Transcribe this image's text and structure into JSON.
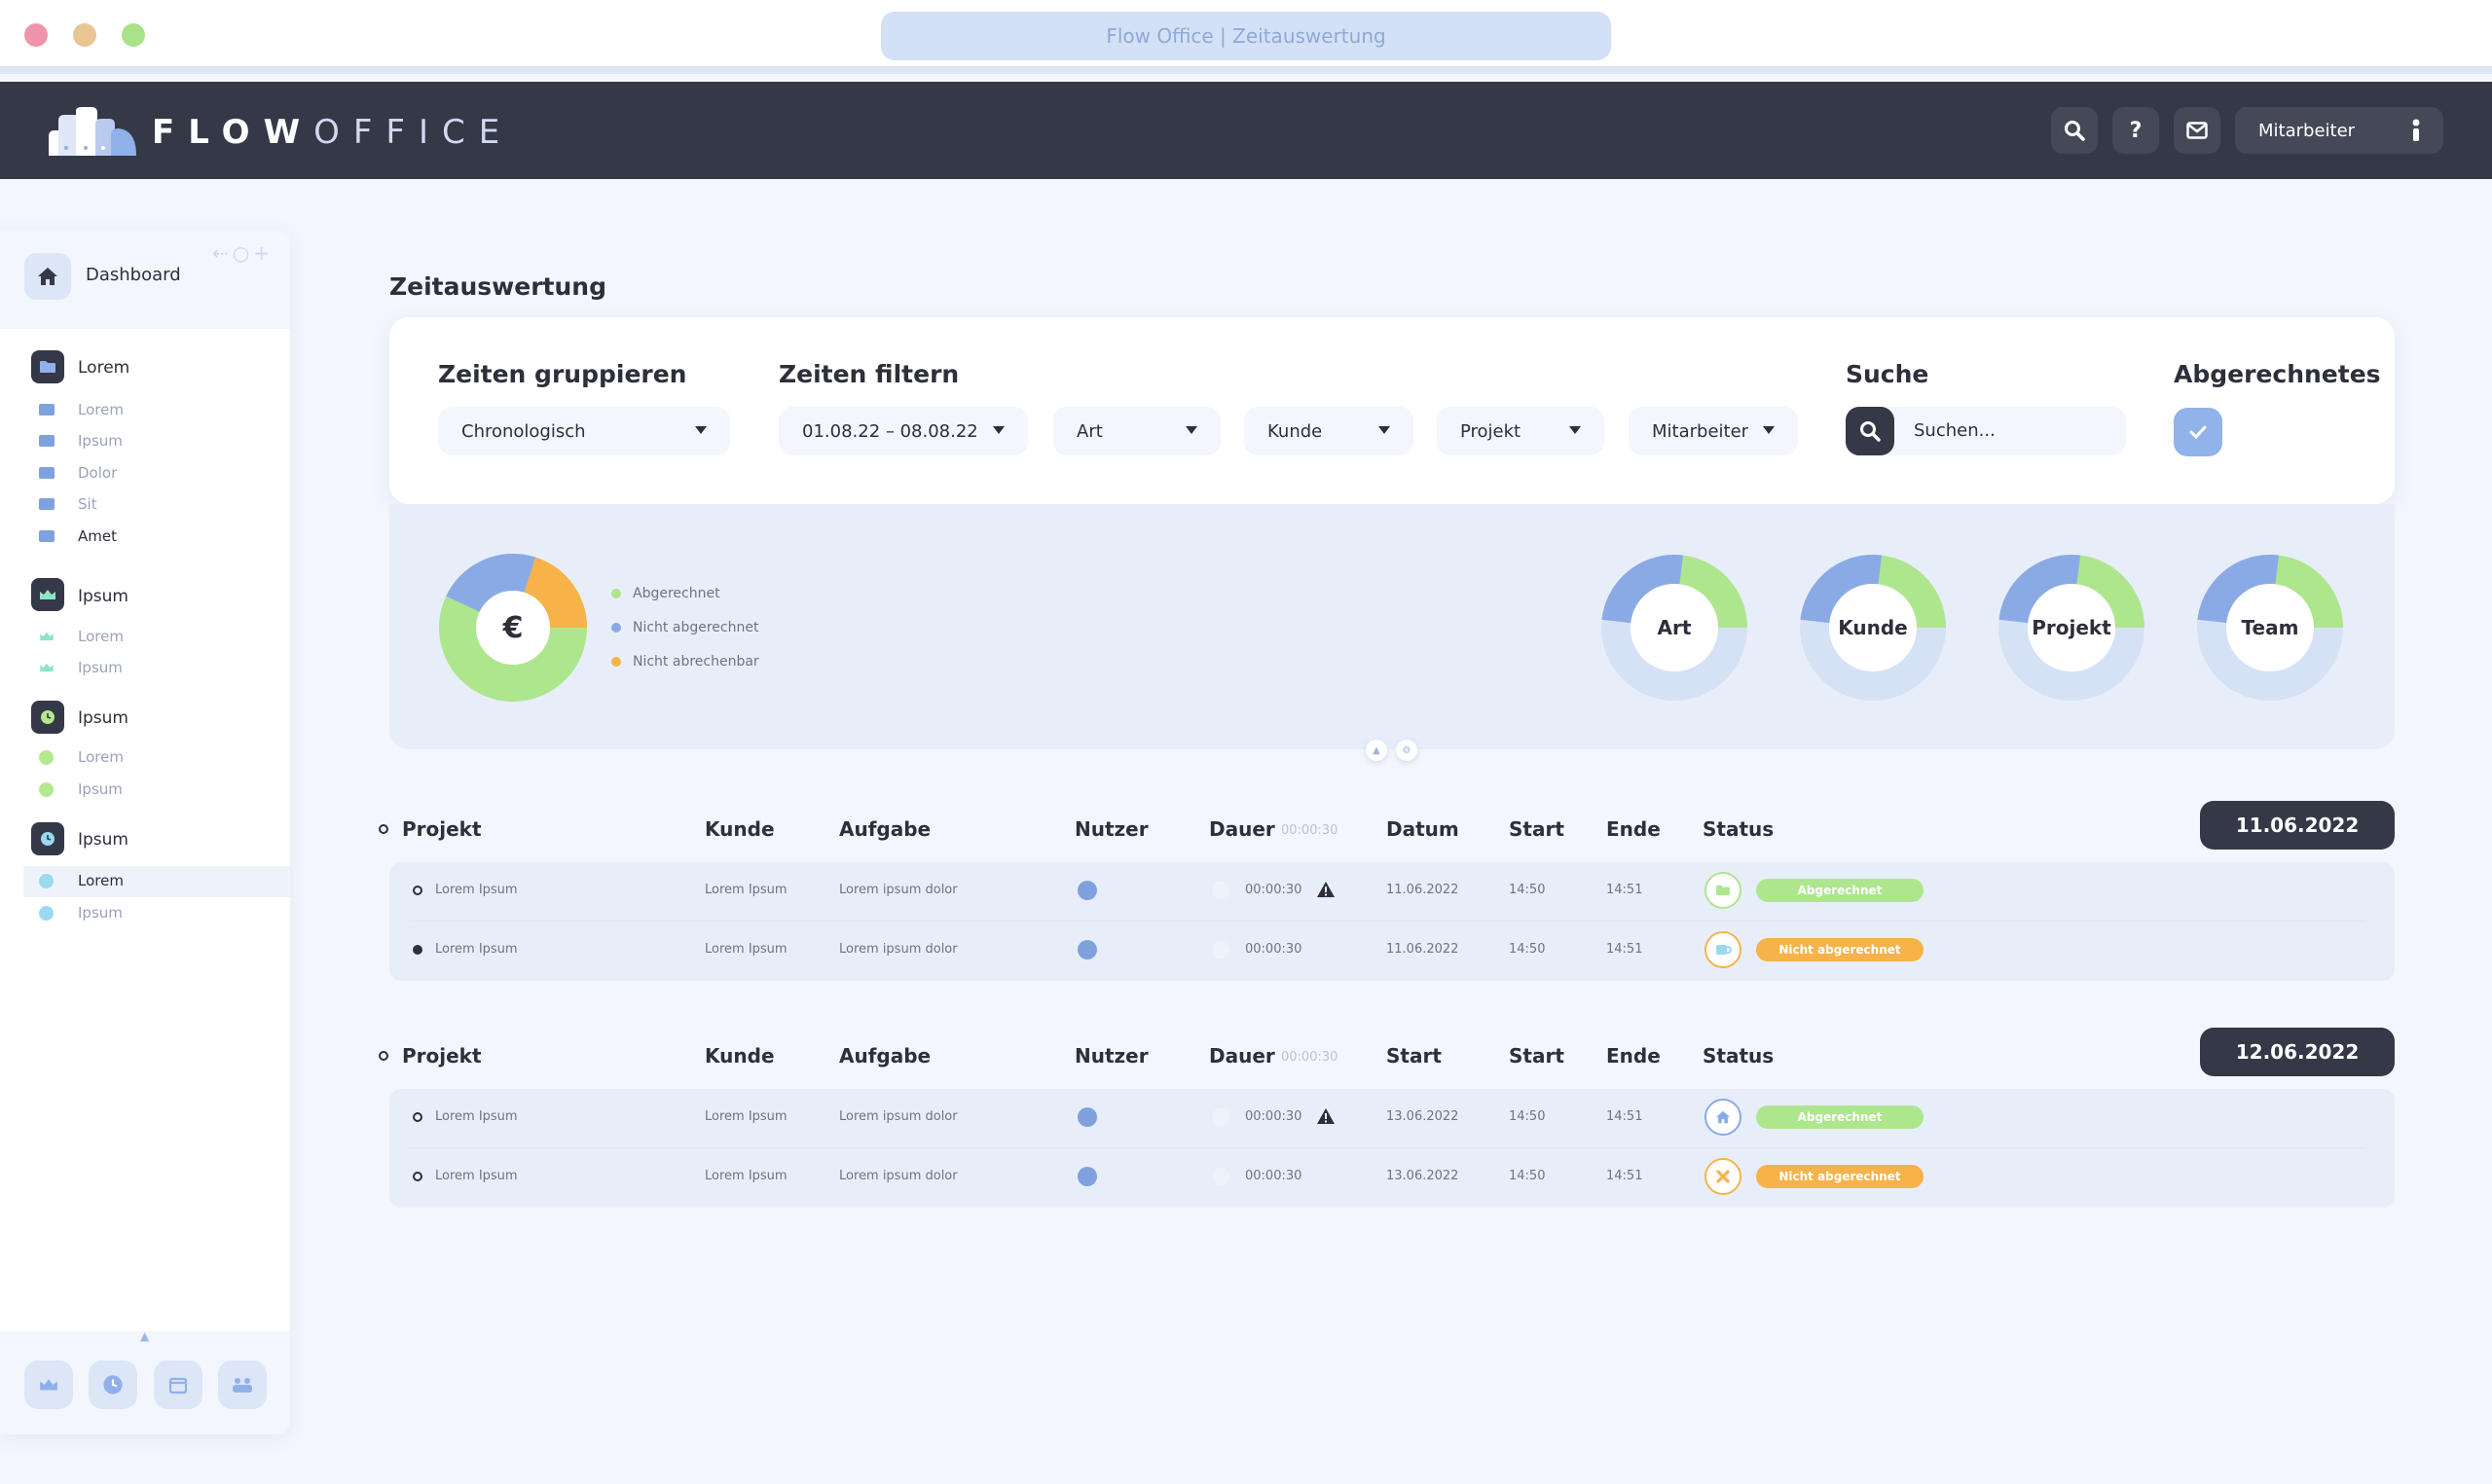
{
  "browser": {
    "url_title": "Flow Office | Zeitauswertung"
  },
  "header": {
    "logo_bold": "FLOW",
    "logo_thin": "OFFICE",
    "help_glyph": "?",
    "user_label": "Mitarbeiter"
  },
  "sidebar": {
    "dashboard": "Dashboard",
    "sections": [
      {
        "label": "Lorem",
        "items": [
          "Lorem",
          "Ipsum",
          "Dolor",
          "Sit",
          "Amet"
        ]
      },
      {
        "label": "Ipsum",
        "items": [
          "Lorem",
          "Ipsum"
        ]
      },
      {
        "label": "Ipsum",
        "items": [
          "Lorem",
          "Ipsum"
        ]
      },
      {
        "label": "Ipsum",
        "items": [
          "Lorem",
          "Ipsum"
        ]
      }
    ],
    "active_item": "Lorem"
  },
  "page": {
    "title": "Zeitauswertung"
  },
  "filters": {
    "group_label": "Zeiten gruppieren",
    "group_value": "Chronologisch",
    "filter_label": "Zeiten filtern",
    "date_range": "01.08.22 – 08.08.22",
    "art": "Art",
    "kunde": "Kunde",
    "projekt": "Projekt",
    "mitarbeiter": "Mitarbeiter",
    "search_label": "Suche",
    "search_placeholder": "Suchen...",
    "billed_label": "Abgerechnetes",
    "billed_checked": true
  },
  "overview": {
    "main_symbol": "€",
    "legend": [
      "Abgerechnet",
      "Nicht abgerechnet",
      "Nicht abrechenbar"
    ],
    "colors": {
      "green": "#aee68e",
      "blue": "#8aaae6",
      "orange": "#f7b24a",
      "light": "#d5e2f6"
    },
    "share_shown_by_rings": {
      "abgerechnet": 0.57,
      "nicht_abgerechnet": 0.23,
      "nicht_abrechenbar": 0.2
    },
    "donuts": [
      "Art",
      "Kunde",
      "Projekt",
      "Team"
    ]
  },
  "groups": [
    {
      "date": "11.06.2022",
      "headers": {
        "projekt": "Projekt",
        "kunde": "Kunde",
        "aufgabe": "Aufgabe",
        "nutzer": "Nutzer",
        "dauer": "Dauer",
        "dauer_total": "00:00:30",
        "datum": "Datum",
        "start": "Start",
        "ende": "Ende",
        "status": "Status"
      },
      "rows": [
        {
          "projekt": "Lorem Ipsum",
          "kunde": "Lorem Ipsum",
          "aufgabe": "Lorem ipsum dolor",
          "dauer": "00:00:30",
          "datum": "11.06.2022",
          "start": "14:50",
          "ende": "14:51",
          "status": "Abgerechnet",
          "warning": true
        },
        {
          "projekt": "Lorem Ipsum",
          "kunde": "Lorem Ipsum",
          "aufgabe": "Lorem ipsum dolor",
          "dauer": "00:00:30",
          "datum": "11.06.2022",
          "start": "14:50",
          "ende": "14:51",
          "status": "Nicht abgerechnet",
          "warning": false
        }
      ]
    },
    {
      "date": "12.06.2022",
      "headers": {
        "projekt": "Projekt",
        "kunde": "Kunde",
        "aufgabe": "Aufgabe",
        "nutzer": "Nutzer",
        "dauer": "Dauer",
        "dauer_total": "00:00:30",
        "datum": "Start",
        "start": "Start",
        "ende": "Ende",
        "status": "Status"
      },
      "rows": [
        {
          "projekt": "Lorem Ipsum",
          "kunde": "Lorem Ipsum",
          "aufgabe": "Lorem ipsum dolor",
          "dauer": "00:00:30",
          "datum": "13.06.2022",
          "start": "14:50",
          "ende": "14:51",
          "status": "Abgerechnet",
          "warning": true
        },
        {
          "projekt": "Lorem Ipsum",
          "kunde": "Lorem Ipsum",
          "aufgabe": "Lorem ipsum dolor",
          "dauer": "00:00:30",
          "datum": "13.06.2022",
          "start": "14:50",
          "ende": "14:51",
          "status": "Nicht abgerechnet",
          "warning": false
        }
      ]
    }
  ]
}
